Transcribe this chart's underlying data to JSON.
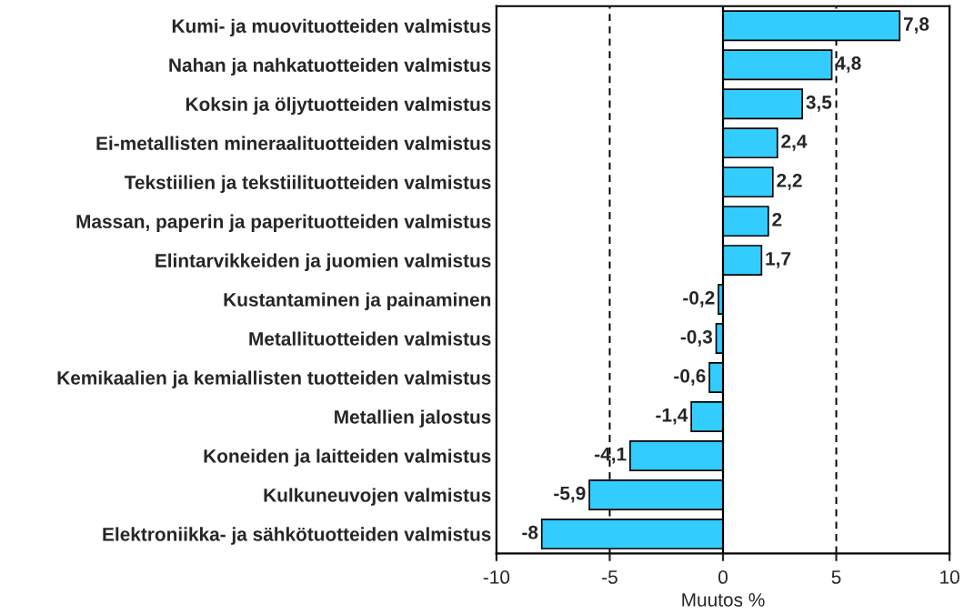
{
  "chart_data": {
    "type": "bar",
    "orientation": "horizontal",
    "xlabel": "Muutos %",
    "categories": [
      "Kumi- ja muovituotteiden valmistus",
      "Nahan ja nahkatuotteiden valmistus",
      "Koksin ja öljytuotteiden valmistus",
      "Ei-metallisten mineraalituotteiden valmistus",
      "Tekstiilien ja tekstiilituotteiden valmistus",
      "Massan, paperin ja paperituotteiden valmistus",
      "Elintarvikkeiden ja juomien valmistus",
      "Kustantaminen ja painaminen",
      "Metallituotteiden valmistus",
      "Kemikaalien ja kemiallisten tuotteiden valmistus",
      "Metallien jalostus",
      "Koneiden ja laitteiden valmistus",
      "Kulkuneuvojen valmistus",
      "Elektroniikka- ja sähkötuotteiden valmistus"
    ],
    "values": [
      7.8,
      4.8,
      3.5,
      2.4,
      2.2,
      2,
      1.7,
      -0.2,
      -0.3,
      -0.6,
      -1.4,
      -4.1,
      -5.9,
      -8
    ],
    "value_labels": [
      "7,8",
      "4,8",
      "3,5",
      "2,4",
      "2,2",
      "2",
      "1,7",
      "-0,2",
      "-0,3",
      "-0,6",
      "-1,4",
      "-4,1",
      "-5,9",
      "-8"
    ],
    "color": "#33ccff",
    "xlim": [
      -10,
      10
    ],
    "xticks": [
      -10,
      -5,
      0,
      5,
      10
    ],
    "ref_lines": [
      {
        "axis": "x",
        "value": -5,
        "line_style": "dashed",
        "color": "#000000"
      },
      {
        "axis": "x",
        "value": 5,
        "line_style": "dashed",
        "color": "#000000"
      }
    ],
    "grid": false,
    "legend": false
  }
}
